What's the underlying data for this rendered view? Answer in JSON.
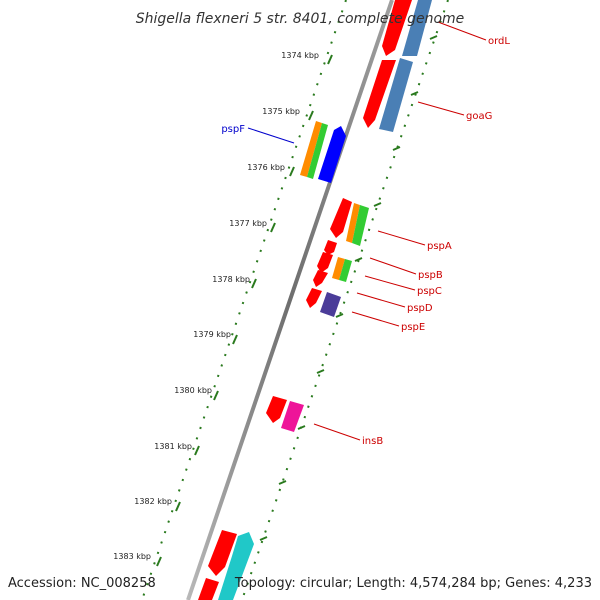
{
  "title": "Shigella flexneri 5 str. 8401, complete genome",
  "accession": "Accession: NC_008258",
  "topology": "Topology: circular; Length: 4,574,284 bp; Genes: 4,233",
  "colors": {
    "backbone": "#808080",
    "tick": "#2a7a1e",
    "label_red": "#cc0000",
    "label_blue": "#0000cc",
    "gene_red": "#ff0000",
    "gene_blue": "#4a7fb5",
    "gene_orange": "#ff8c00",
    "gene_green": "#33cc33",
    "gene_purple": "#4b3c99",
    "gene_magenta": "#ee1499",
    "gene_cyan": "#20c8c8"
  },
  "ticks": [
    {
      "label": "1374 kbp"
    },
    {
      "label": "1375 kbp"
    },
    {
      "label": "1376 kbp"
    },
    {
      "label": "1377 kbp"
    },
    {
      "label": "1378 kbp"
    },
    {
      "label": "1379 kbp"
    },
    {
      "label": "1380 kbp"
    },
    {
      "label": "1381 kbp"
    },
    {
      "label": "1382 kbp"
    },
    {
      "label": "1383 kbp"
    }
  ],
  "gene_labels": [
    {
      "name": "ordL",
      "color": "label_red"
    },
    {
      "name": "goaG",
      "color": "label_red"
    },
    {
      "name": "pspF",
      "color": "label_blue"
    },
    {
      "name": "pspA",
      "color": "label_red"
    },
    {
      "name": "pspB",
      "color": "label_red"
    },
    {
      "name": "pspC",
      "color": "label_red"
    },
    {
      "name": "pspD",
      "color": "label_red"
    },
    {
      "name": "pspE",
      "color": "label_red"
    },
    {
      "name": "insB",
      "color": "label_red"
    }
  ]
}
